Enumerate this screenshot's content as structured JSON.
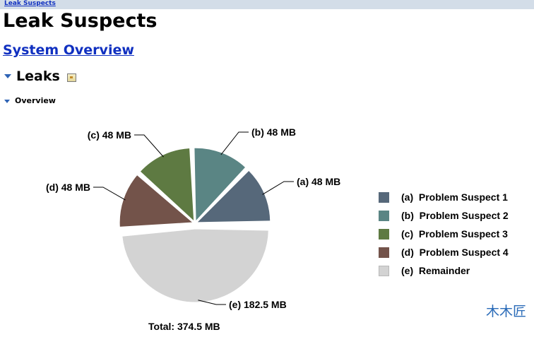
{
  "breadcrumb": {
    "label": "Leak Suspects"
  },
  "page": {
    "title": "Leak Suspects",
    "overview_link": "System Overview"
  },
  "sections": {
    "leaks": "Leaks",
    "overview": "Overview"
  },
  "chart_data": {
    "type": "pie",
    "unit": "MB",
    "slices": [
      {
        "key": "a",
        "label": "(a)  48 MB",
        "legend": "(a)  Problem Suspect 1",
        "value": 48,
        "color": "#56687a"
      },
      {
        "key": "b",
        "label": "(b)  48 MB",
        "legend": "(b)  Problem Suspect 2",
        "value": 48,
        "color": "#5a8584"
      },
      {
        "key": "c",
        "label": "(c)  48 MB",
        "legend": "(c)  Problem Suspect 3",
        "value": 48,
        "color": "#5e7a42"
      },
      {
        "key": "d",
        "label": "(d)  48 MB",
        "legend": "(d)  Problem Suspect 4",
        "value": 48,
        "color": "#73534a"
      },
      {
        "key": "e",
        "label": "(e)  182.5 MB",
        "legend": "(e)  Remainder",
        "value": 182.5,
        "color": "#d3d3d3"
      }
    ],
    "total_label": "Total: 374.5 MB"
  },
  "watermark": "木木匠"
}
